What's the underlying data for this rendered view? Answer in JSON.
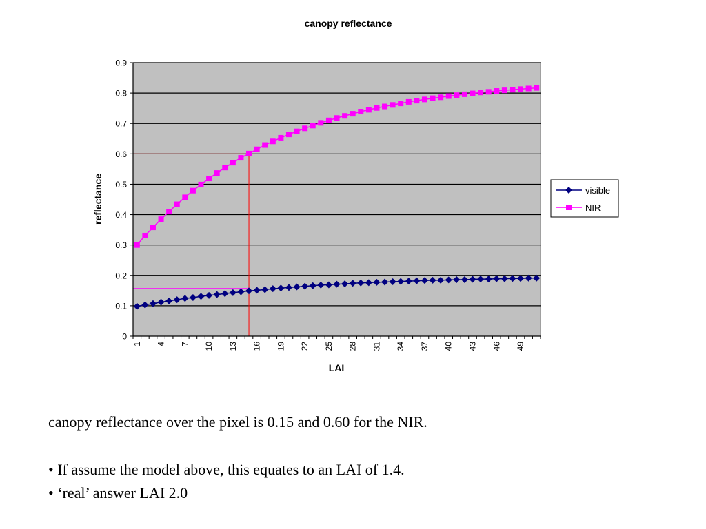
{
  "chart_data": {
    "type": "line",
    "title": "canopy reflectance",
    "xlabel": "LAI",
    "ylabel": "reflectance",
    "x_tick_labels": [
      "1",
      "4",
      "7",
      "10",
      "13",
      "16",
      "19",
      "22",
      "25",
      "28",
      "31",
      "34",
      "37",
      "40",
      "43",
      "46",
      "49"
    ],
    "y_tick_labels": [
      "0",
      "0.1",
      "0.2",
      "0.3",
      "0.4",
      "0.5",
      "0.6",
      "0.7",
      "0.8",
      "0.9"
    ],
    "ylim": [
      0,
      0.9
    ],
    "x_categories": 51,
    "grid": "horizontal",
    "legend_position": "right",
    "plot_background": "#c0c0c0",
    "series": [
      {
        "name": "visible",
        "color": "#000080",
        "marker": "diamond",
        "values": [
          0.098,
          0.103,
          0.107,
          0.112,
          0.116,
          0.12,
          0.124,
          0.127,
          0.131,
          0.134,
          0.137,
          0.14,
          0.143,
          0.146,
          0.149,
          0.151,
          0.153,
          0.156,
          0.158,
          0.16,
          0.162,
          0.164,
          0.166,
          0.168,
          0.169,
          0.171,
          0.172,
          0.174,
          0.175,
          0.176,
          0.177,
          0.178,
          0.179,
          0.18,
          0.181,
          0.182,
          0.183,
          0.184,
          0.184,
          0.185,
          0.186,
          0.186,
          0.187,
          0.188,
          0.188,
          0.189,
          0.189,
          0.19,
          0.19,
          0.191,
          0.191
        ]
      },
      {
        "name": "NIR",
        "color": "#ff00ff",
        "marker": "square",
        "values": [
          0.3,
          0.331,
          0.358,
          0.385,
          0.41,
          0.434,
          0.457,
          0.479,
          0.499,
          0.519,
          0.537,
          0.555,
          0.571,
          0.587,
          0.601,
          0.615,
          0.629,
          0.641,
          0.653,
          0.664,
          0.674,
          0.684,
          0.693,
          0.702,
          0.71,
          0.718,
          0.725,
          0.732,
          0.739,
          0.745,
          0.751,
          0.756,
          0.761,
          0.766,
          0.771,
          0.775,
          0.779,
          0.783,
          0.786,
          0.79,
          0.793,
          0.796,
          0.799,
          0.802,
          0.804,
          0.807,
          0.809,
          0.811,
          0.813,
          0.815,
          0.817
        ]
      }
    ],
    "annotations": {
      "vertical_line_x_index": 15,
      "vertical_line_color": "#ff0000",
      "nir_level": 0.6,
      "nir_line_color": "#ff0000",
      "visible_level": 0.157,
      "visible_line_color": "#ff00ff"
    }
  },
  "text": {
    "line1": "canopy reflectance over the pixel is 0.15 and 0.60 for the NIR.",
    "bullet1": "• If assume the model above, this equates to an LAI of 1.4.",
    "bullet2": "• ‘real’ answer LAI 2.0"
  }
}
